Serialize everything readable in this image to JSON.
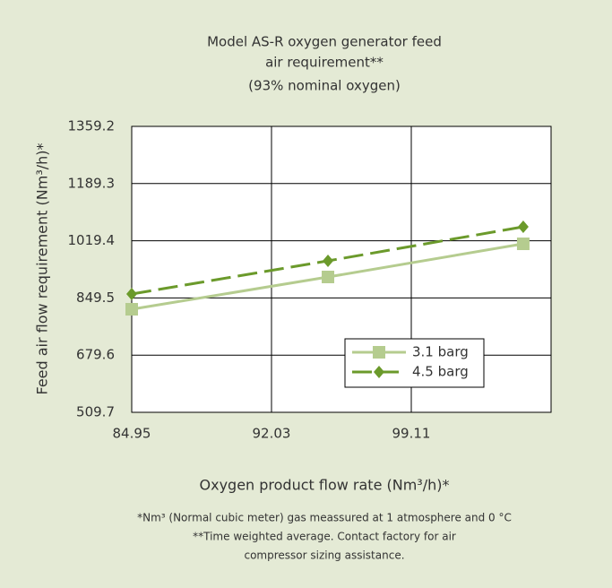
{
  "chart_data": {
    "type": "line",
    "title": [
      "Model AS-R oxygen generator feed",
      "air requirement**"
    ],
    "subtitle": "(93% nominal oxygen)",
    "x_label": "Oxygen product flow rate (Nm³/h)*",
    "y_label": "Feed air flow requirement (Nm³/h)*",
    "x": [
      84.95,
      94.89,
      104.78
    ],
    "series": [
      {
        "name": "3.1 barg",
        "color": "#b5cc8f",
        "marker": "square",
        "dashed": false,
        "values": [
          815.9,
          911.8,
          1010.3
        ]
      },
      {
        "name": "4.5 barg",
        "color": "#6b9a2b",
        "marker": "diamond",
        "dashed": true,
        "values": [
          861.2,
          959.7,
          1060.9
        ]
      }
    ],
    "xlim": [
      84.95,
      106.19
    ],
    "xticks": [
      84.95,
      92.03,
      99.11
    ],
    "ylim": [
      509.7,
      1359.2
    ],
    "yticks": [
      509.7,
      679.6,
      849.5,
      1019.4,
      1189.3,
      1359.2
    ],
    "grid": true,
    "legend": "lower right",
    "notes": [
      "*Nm³ (Normal cubic meter) gas meassured at 1 atmosphere and 0 °C",
      "**Time weighted average. Contact factory for air",
      "compressor sizing assistance."
    ]
  }
}
